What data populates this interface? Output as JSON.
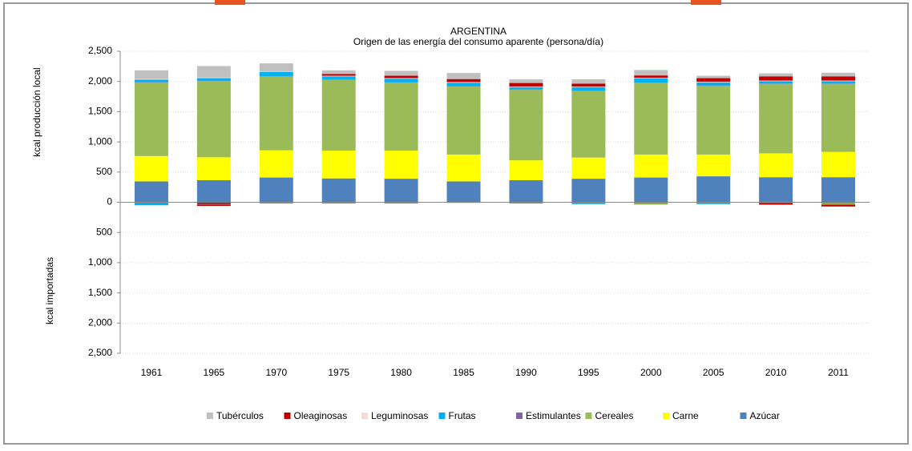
{
  "chart_data": {
    "type": "bar",
    "stacked": true,
    "title": "ARGENTINA",
    "subtitle": "Origen de las energía del consumo aparente (persona/día)",
    "y_label_top": "kcal producción local",
    "y_label_bottom": "kcal importadas",
    "categories": [
      "1961",
      "1965",
      "1970",
      "1975",
      "1980",
      "1985",
      "1990",
      "1995",
      "2000",
      "2005",
      "2010",
      "2011"
    ],
    "series": [
      {
        "name": "Tubérculos",
        "color": "#c0c0c0",
        "values": [
          145,
          190,
          130,
          60,
          80,
          100,
          60,
          70,
          90,
          40,
          50,
          60
        ]
      },
      {
        "name": "Oleaginosas",
        "color": "#c00000",
        "values": [
          0,
          -30,
          0,
          30,
          40,
          50,
          60,
          50,
          40,
          60,
          70,
          70
        ]
      },
      {
        "name": "Leguminosas",
        "color": "#f2dcdb",
        "values": [
          10,
          10,
          10,
          10,
          10,
          10,
          10,
          10,
          10,
          10,
          10,
          10
        ]
      },
      {
        "name": "Frutas",
        "color": "#00b0f0",
        "values": [
          40,
          40,
          70,
          50,
          60,
          60,
          40,
          60,
          70,
          50,
          40,
          40
        ]
      },
      {
        "name": "Estimulantes",
        "color": "#8064a2",
        "values": [
          5,
          5,
          5,
          5,
          5,
          5,
          5,
          5,
          5,
          5,
          5,
          5
        ]
      },
      {
        "name": "Cereales",
        "color": "#9bbb59",
        "values": [
          1220,
          1265,
          1225,
          1175,
          1125,
          1125,
          1165,
          1100,
          1185,
          1140,
          1150,
          1125
        ]
      },
      {
        "name": "Carne",
        "color": "#ffff00",
        "values": [
          420,
          380,
          450,
          460,
          465,
          445,
          330,
          350,
          380,
          360,
          395,
          420
        ]
      },
      {
        "name": "Azúcar",
        "color": "#4f81bd",
        "values": [
          345,
          365,
          410,
          395,
          390,
          345,
          365,
          390,
          410,
          430,
          415,
          415
        ]
      }
    ],
    "negatives": [
      {
        "name": "Frutas",
        "color": "#00b0f0",
        "values": [
          -50,
          -10,
          -20,
          -20,
          -20,
          -10,
          -20,
          -30,
          -20,
          -30,
          -10,
          -20
        ]
      },
      {
        "name": "Cereales",
        "color": "#9bbb59",
        "values": [
          0,
          0,
          0,
          0,
          0,
          0,
          0,
          0,
          -20,
          0,
          0,
          -20
        ]
      },
      {
        "name": "Oleaginosas",
        "color": "#c00000",
        "values": [
          0,
          -20,
          0,
          0,
          0,
          0,
          0,
          0,
          0,
          0,
          -30,
          -30
        ]
      }
    ],
    "ylim": [
      -2500,
      2500
    ],
    "yticks": [
      {
        "value": 2500,
        "label": "2,500"
      },
      {
        "value": 2000,
        "label": "2,000"
      },
      {
        "value": 1500,
        "label": "1,500"
      },
      {
        "value": 1000,
        "label": "1,000"
      },
      500,
      0,
      {
        "value": -500,
        "label": "500"
      },
      {
        "value": -1000,
        "label": "1,000"
      },
      {
        "value": -1500,
        "label": "1,500"
      },
      {
        "value": -2000,
        "label": "2,000"
      },
      {
        "value": -2500,
        "label": "2,500"
      }
    ],
    "grid": true
  }
}
